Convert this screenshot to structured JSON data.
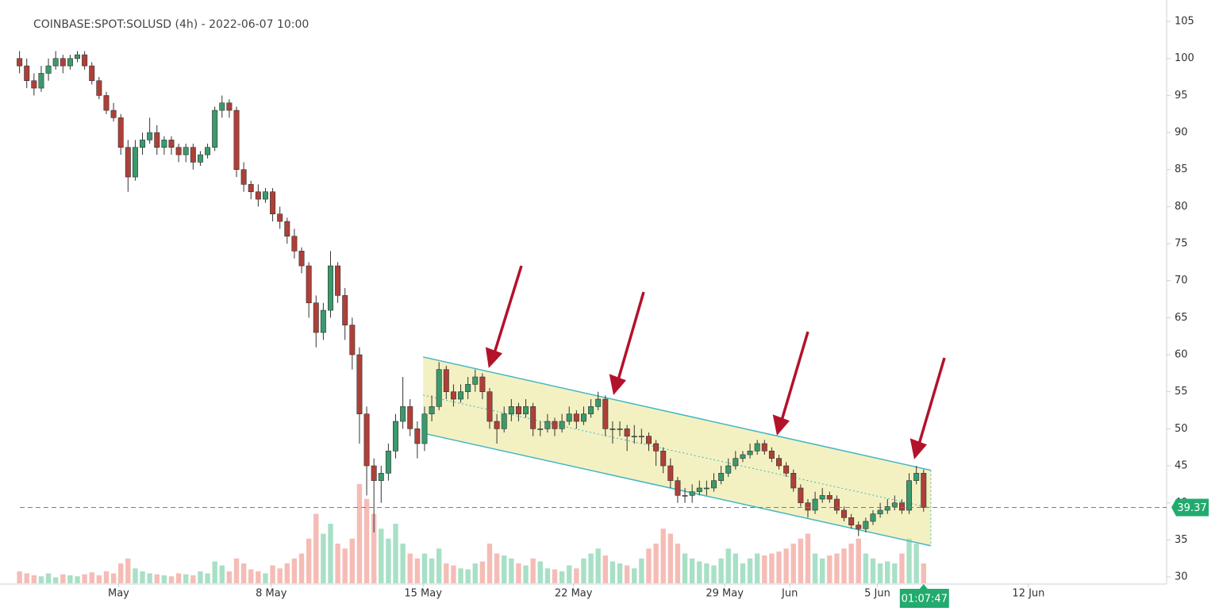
{
  "chart_data": {
    "type": "candlestick",
    "title": "COINBASE:SPOT:SOLUSD (4h) - 2022-06-07 10:00",
    "up_color": "#3a9a6c",
    "down_color": "#ad4038",
    "volume_up_color": "#a8e0c6",
    "volume_down_color": "#f5bcb6",
    "candles": [
      [
        100,
        101,
        98,
        99
      ],
      [
        99,
        100,
        96,
        97
      ],
      [
        97,
        98,
        95,
        96
      ],
      [
        96,
        99,
        95.5,
        98
      ],
      [
        98,
        100,
        97,
        99
      ],
      [
        99,
        101,
        98.5,
        100
      ],
      [
        100,
        100.5,
        98,
        99
      ],
      [
        99,
        100.5,
        98.5,
        100
      ],
      [
        100,
        101,
        99.5,
        100.5
      ],
      [
        100.5,
        101,
        98.5,
        99
      ],
      [
        99,
        99.5,
        96.5,
        97
      ],
      [
        97,
        97.5,
        94.5,
        95
      ],
      [
        95,
        95.5,
        92.5,
        93
      ],
      [
        93,
        94,
        91.5,
        92
      ],
      [
        92,
        92.5,
        87,
        88
      ],
      [
        88,
        89,
        82,
        84
      ],
      [
        84,
        89,
        83.5,
        88
      ],
      [
        88,
        90,
        87,
        89
      ],
      [
        89,
        92,
        88.5,
        90
      ],
      [
        90,
        91,
        87,
        88
      ],
      [
        88,
        89.5,
        87,
        89
      ],
      [
        89,
        89.5,
        87,
        88
      ],
      [
        88,
        88.5,
        86,
        87
      ],
      [
        87,
        88.5,
        86,
        88
      ],
      [
        88,
        88.5,
        85,
        86
      ],
      [
        86,
        87.5,
        85.5,
        87
      ],
      [
        87,
        88.5,
        86.5,
        88
      ],
      [
        88,
        93.5,
        87.5,
        93
      ],
      [
        93,
        95,
        92,
        94
      ],
      [
        94,
        94.5,
        92,
        93
      ],
      [
        93,
        93.5,
        84,
        85
      ],
      [
        85,
        86,
        82,
        83
      ],
      [
        83,
        83.5,
        81,
        82
      ],
      [
        82,
        83,
        80,
        81
      ],
      [
        81,
        82.5,
        80.5,
        82
      ],
      [
        82,
        82.5,
        78,
        79
      ],
      [
        79,
        80,
        77,
        78
      ],
      [
        78,
        78.5,
        75,
        76
      ],
      [
        76,
        77,
        73,
        74
      ],
      [
        74,
        74.5,
        71,
        72
      ],
      [
        72,
        72.5,
        65,
        67
      ],
      [
        67,
        68,
        61,
        63
      ],
      [
        63,
        67,
        62,
        66
      ],
      [
        66,
        74,
        65,
        72
      ],
      [
        72,
        72.5,
        67,
        68
      ],
      [
        68,
        69,
        62,
        64
      ],
      [
        64,
        65,
        58,
        60
      ],
      [
        60,
        61,
        48,
        52
      ],
      [
        52,
        53,
        41,
        45
      ],
      [
        45,
        46,
        36,
        43
      ],
      [
        43,
        45,
        40,
        44
      ],
      [
        44,
        48,
        43,
        47
      ],
      [
        47,
        52,
        46,
        51
      ],
      [
        51,
        57,
        50,
        53
      ],
      [
        53,
        54,
        49,
        50
      ],
      [
        50,
        51,
        46,
        48
      ],
      [
        48,
        53,
        47,
        52
      ],
      [
        52,
        54.5,
        51,
        53
      ],
      [
        53,
        59,
        52.5,
        58
      ],
      [
        58,
        58.5,
        54,
        55
      ],
      [
        55,
        56,
        53,
        54
      ],
      [
        54,
        56,
        53.5,
        55
      ],
      [
        55,
        57,
        54,
        56
      ],
      [
        56,
        58,
        55,
        57
      ],
      [
        57,
        57.5,
        54,
        55
      ],
      [
        55,
        55.5,
        50,
        51
      ],
      [
        51,
        52,
        48,
        50
      ],
      [
        50,
        53,
        49.5,
        52
      ],
      [
        52,
        54,
        51,
        53
      ],
      [
        53,
        53.5,
        51,
        52
      ],
      [
        52,
        54,
        51.5,
        53
      ],
      [
        53,
        53.5,
        49,
        50
      ],
      [
        50,
        51,
        49,
        50
      ],
      [
        50,
        52,
        49.5,
        51
      ],
      [
        51,
        51.5,
        49,
        50
      ],
      [
        50,
        52,
        49.5,
        51
      ],
      [
        51,
        53,
        50.5,
        52
      ],
      [
        52,
        52.5,
        50,
        51
      ],
      [
        51,
        53,
        50.5,
        52
      ],
      [
        52,
        54,
        51.5,
        53
      ],
      [
        53,
        55,
        52.5,
        54
      ],
      [
        54,
        54.5,
        49,
        50
      ],
      [
        50,
        51,
        48,
        50
      ],
      [
        50,
        51,
        49,
        50
      ],
      [
        50,
        50.5,
        47,
        49
      ],
      [
        49,
        50.5,
        48,
        49
      ],
      [
        49,
        50,
        48,
        49
      ],
      [
        49,
        49.5,
        47,
        48
      ],
      [
        48,
        48.5,
        45,
        47
      ],
      [
        47,
        47.5,
        44,
        45
      ],
      [
        45,
        46,
        42,
        43
      ],
      [
        43,
        43.5,
        40,
        41
      ],
      [
        41,
        42,
        40,
        41
      ],
      [
        41,
        42.5,
        40,
        41.5
      ],
      [
        41.5,
        43,
        41,
        42
      ],
      [
        42,
        43,
        41,
        42
      ],
      [
        42,
        44,
        41.5,
        43
      ],
      [
        43,
        45,
        42.5,
        44
      ],
      [
        44,
        46,
        43.5,
        45
      ],
      [
        45,
        47,
        44.5,
        46
      ],
      [
        46,
        47,
        45.5,
        46.5
      ],
      [
        46.5,
        48,
        46,
        47
      ],
      [
        47,
        48.5,
        46.5,
        48
      ],
      [
        48,
        48.5,
        46.5,
        47
      ],
      [
        47,
        47.5,
        45.5,
        46
      ],
      [
        46,
        46.5,
        44.5,
        45
      ],
      [
        45,
        45.5,
        43.5,
        44
      ],
      [
        44,
        44.5,
        41.5,
        42
      ],
      [
        42,
        42.5,
        39.5,
        40
      ],
      [
        40,
        40.5,
        38,
        39
      ],
      [
        39,
        41.5,
        38.5,
        40.5
      ],
      [
        40.5,
        42,
        40,
        41
      ],
      [
        41,
        41.5,
        40,
        40.5
      ],
      [
        40.5,
        41,
        38.5,
        39
      ],
      [
        39,
        39.5,
        37.5,
        38
      ],
      [
        38,
        38.5,
        36.5,
        37
      ],
      [
        37,
        37.5,
        35.5,
        36.5
      ],
      [
        36.5,
        38,
        36,
        37.5
      ],
      [
        37.5,
        39,
        37,
        38.5
      ],
      [
        38.5,
        40,
        38,
        39
      ],
      [
        39,
        40.5,
        38.5,
        39.5
      ],
      [
        39.5,
        41,
        39,
        40
      ],
      [
        40,
        40.5,
        38.5,
        39
      ],
      [
        39,
        44,
        38.5,
        43
      ],
      [
        43,
        45,
        42.5,
        44
      ],
      [
        44,
        44.5,
        38.8,
        39.37
      ]
    ],
    "volume": [
      12,
      10,
      8,
      7,
      10,
      6,
      9,
      8,
      7,
      9,
      11,
      8,
      12,
      10,
      20,
      25,
      15,
      12,
      10,
      9,
      8,
      7,
      10,
      9,
      8,
      12,
      10,
      22,
      18,
      12,
      25,
      20,
      14,
      12,
      10,
      18,
      15,
      20,
      25,
      30,
      45,
      70,
      50,
      60,
      40,
      35,
      45,
      100,
      85,
      70,
      55,
      45,
      60,
      40,
      30,
      25,
      30,
      25,
      35,
      20,
      18,
      15,
      14,
      20,
      22,
      40,
      30,
      28,
      25,
      20,
      18,
      25,
      22,
      15,
      14,
      12,
      18,
      15,
      25,
      30,
      35,
      28,
      22,
      20,
      18,
      15,
      25,
      35,
      40,
      55,
      50,
      40,
      30,
      25,
      22,
      20,
      18,
      25,
      35,
      30,
      20,
      25,
      30,
      28,
      30,
      32,
      35,
      40,
      45,
      50,
      30,
      25,
      28,
      30,
      35,
      40,
      45,
      30,
      25,
      20,
      22,
      20,
      30,
      45,
      40,
      20
    ],
    "channel": {
      "start": 55.8,
      "end": 126,
      "upper": [
        59.7,
        44.4
      ],
      "lower": [
        49.4,
        34.2
      ]
    },
    "countdown": "01:07:47",
    "xlim": [
      -2.7,
      158.6
    ],
    "xticks": [
      {
        "value": 13.7,
        "label": "May"
      },
      {
        "value": 34.8,
        "label": "8 May"
      },
      {
        "value": 55.8,
        "label": "15 May"
      },
      {
        "value": 76.6,
        "label": "22 May"
      },
      {
        "value": 97.5,
        "label": "29 May"
      },
      {
        "value": 106.5,
        "label": "Jun"
      },
      {
        "value": 118.6,
        "label": "5 Jun"
      },
      {
        "value": 139.5,
        "label": "12 Jun"
      }
    ],
    "ylim": [
      29.14,
      107.9
    ],
    "yticks": [
      30,
      35,
      40,
      45,
      50,
      55,
      60,
      65,
      70,
      75,
      80,
      85,
      90,
      95,
      100,
      105
    ]
  }
}
